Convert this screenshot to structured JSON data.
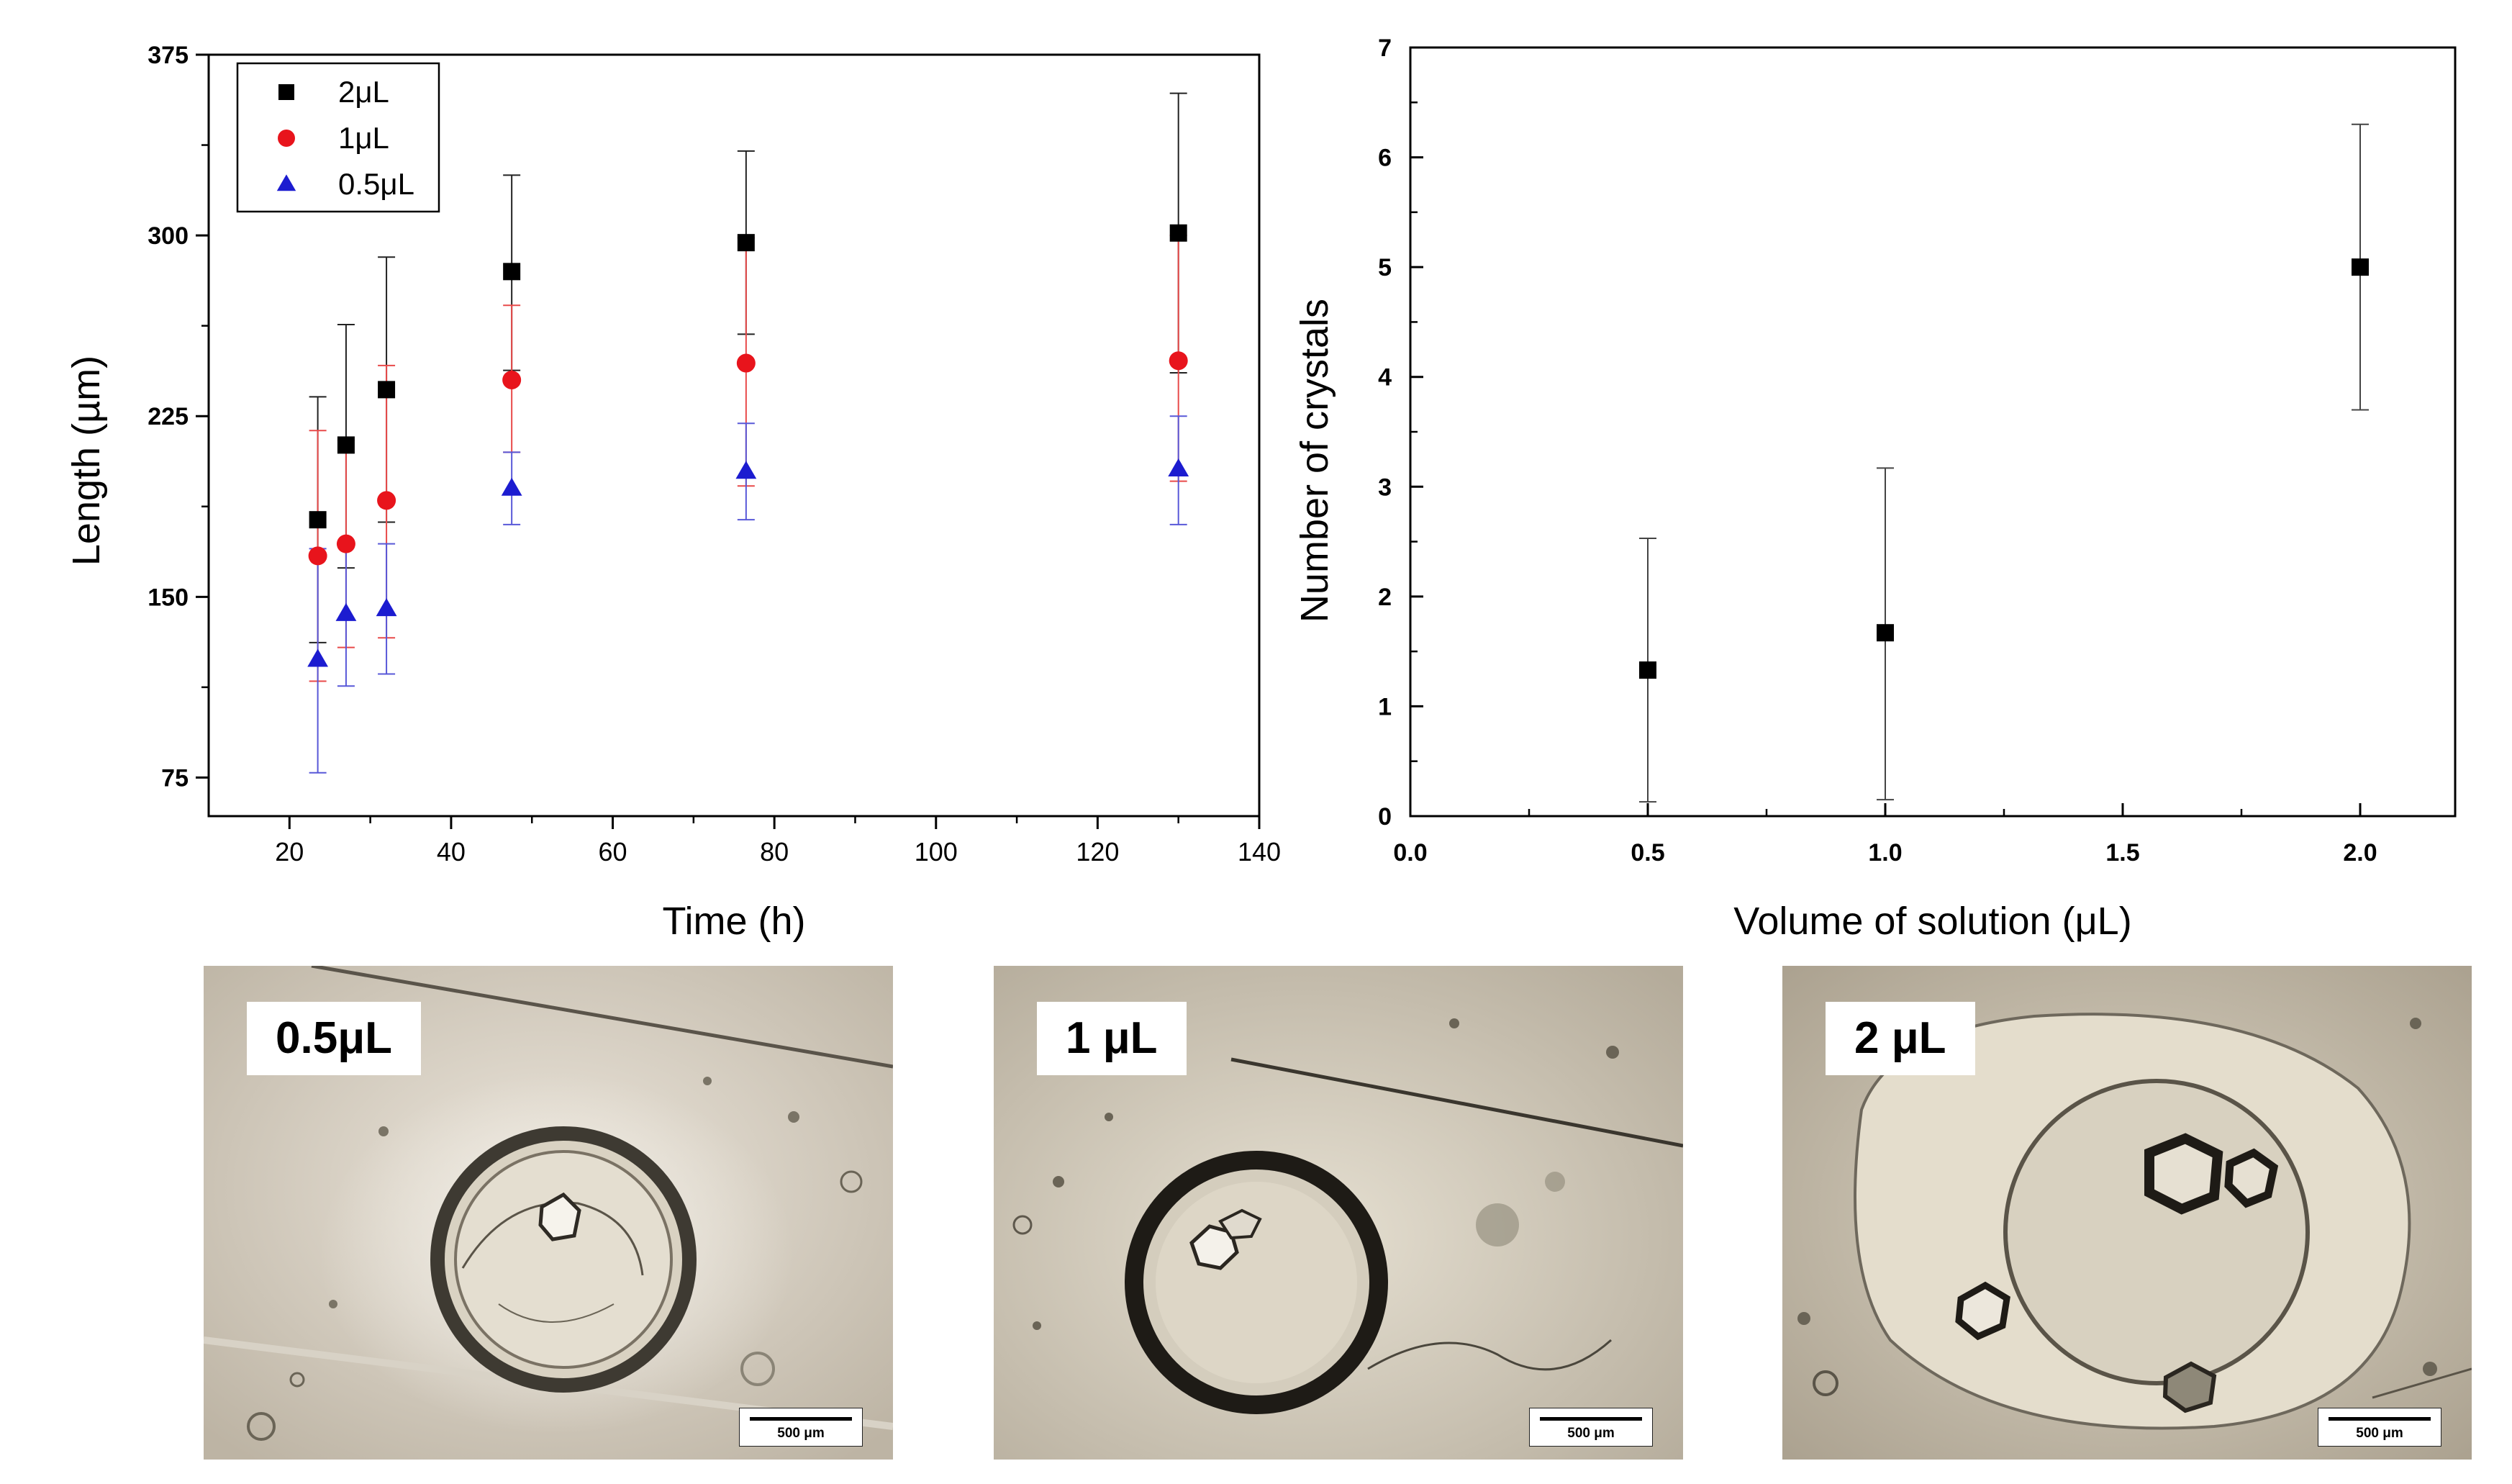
{
  "chart_data": [
    {
      "type": "scatter",
      "xlabel": "Time (h)",
      "ylabel": "Length (µm)",
      "xlim": [
        10,
        140
      ],
      "ylim": [
        59,
        375
      ],
      "xticks": [
        20,
        40,
        60,
        80,
        100,
        120,
        140
      ],
      "yticks": [
        75,
        150,
        225,
        300,
        375
      ],
      "legend": "top-left",
      "series": [
        {
          "name": "2μL",
          "marker": "square",
          "color": "#000000",
          "errcolor": "#222222",
          "points": [
            {
              "x": 23.5,
              "y": 182,
              "lo": 131,
              "hi": 233
            },
            {
              "x": 27,
              "y": 213,
              "lo": 162,
              "hi": 263
            },
            {
              "x": 32,
              "y": 236,
              "lo": 181,
              "hi": 291
            },
            {
              "x": 47.5,
              "y": 285,
              "lo": 244,
              "hi": 325
            },
            {
              "x": 76.5,
              "y": 297,
              "lo": 259,
              "hi": 335
            },
            {
              "x": 130,
              "y": 301,
              "lo": 243,
              "hi": 359
            }
          ]
        },
        {
          "name": "1μL",
          "marker": "circle",
          "color": "#e8141c",
          "errcolor": "#e84a4a",
          "points": [
            {
              "x": 23.5,
              "y": 167,
              "lo": 115,
              "hi": 219
            },
            {
              "x": 27,
              "y": 172,
              "lo": 129,
              "hi": 215
            },
            {
              "x": 32,
              "y": 190,
              "lo": 133,
              "hi": 246
            },
            {
              "x": 47.5,
              "y": 240,
              "lo": 210,
              "hi": 271
            },
            {
              "x": 76.5,
              "y": 247,
              "lo": 196,
              "hi": 299
            },
            {
              "x": 130,
              "y": 248,
              "lo": 198,
              "hi": 300
            }
          ]
        },
        {
          "name": "0.5μL",
          "marker": "triangle",
          "color": "#1c1cd0",
          "errcolor": "#5858d8",
          "points": [
            {
              "x": 23.5,
              "y": 124,
              "lo": 77,
              "hi": 170
            },
            {
              "x": 27,
              "y": 143,
              "lo": 113,
              "hi": 172
            },
            {
              "x": 32,
              "y": 145,
              "lo": 118,
              "hi": 172
            },
            {
              "x": 47.5,
              "y": 195,
              "lo": 180,
              "hi": 210
            },
            {
              "x": 76.5,
              "y": 202,
              "lo": 182,
              "hi": 222
            },
            {
              "x": 130,
              "y": 203,
              "lo": 180,
              "hi": 225
            }
          ]
        }
      ]
    },
    {
      "type": "scatter",
      "xlabel": "Volume of solution (μL)",
      "ylabel": "Number of crystals",
      "xlim": [
        0,
        2.2
      ],
      "ylim": [
        0,
        7
      ],
      "xticks": [
        "0.0",
        "0.5",
        "1.0",
        "1.5",
        "2.0"
      ],
      "yticks": [
        "0",
        "1",
        "2",
        "3",
        "4",
        "5",
        "6",
        "7"
      ],
      "series": [
        {
          "marker": "square",
          "color": "#000000",
          "errcolor": "#444444",
          "points": [
            {
              "x": 0.5,
              "y": 1.33,
              "lo": 0.13,
              "hi": 2.53
            },
            {
              "x": 1.0,
              "y": 1.67,
              "lo": 0.15,
              "hi": 3.17
            },
            {
              "x": 2.0,
              "y": 5.0,
              "lo": 3.7,
              "hi": 6.3
            }
          ]
        }
      ]
    }
  ],
  "micrographs": [
    {
      "label": "0.5μL",
      "scale": "500 μm"
    },
    {
      "label": "1 μL",
      "scale": "500 μm"
    },
    {
      "label": "2 μL",
      "scale": "500 μm"
    }
  ]
}
